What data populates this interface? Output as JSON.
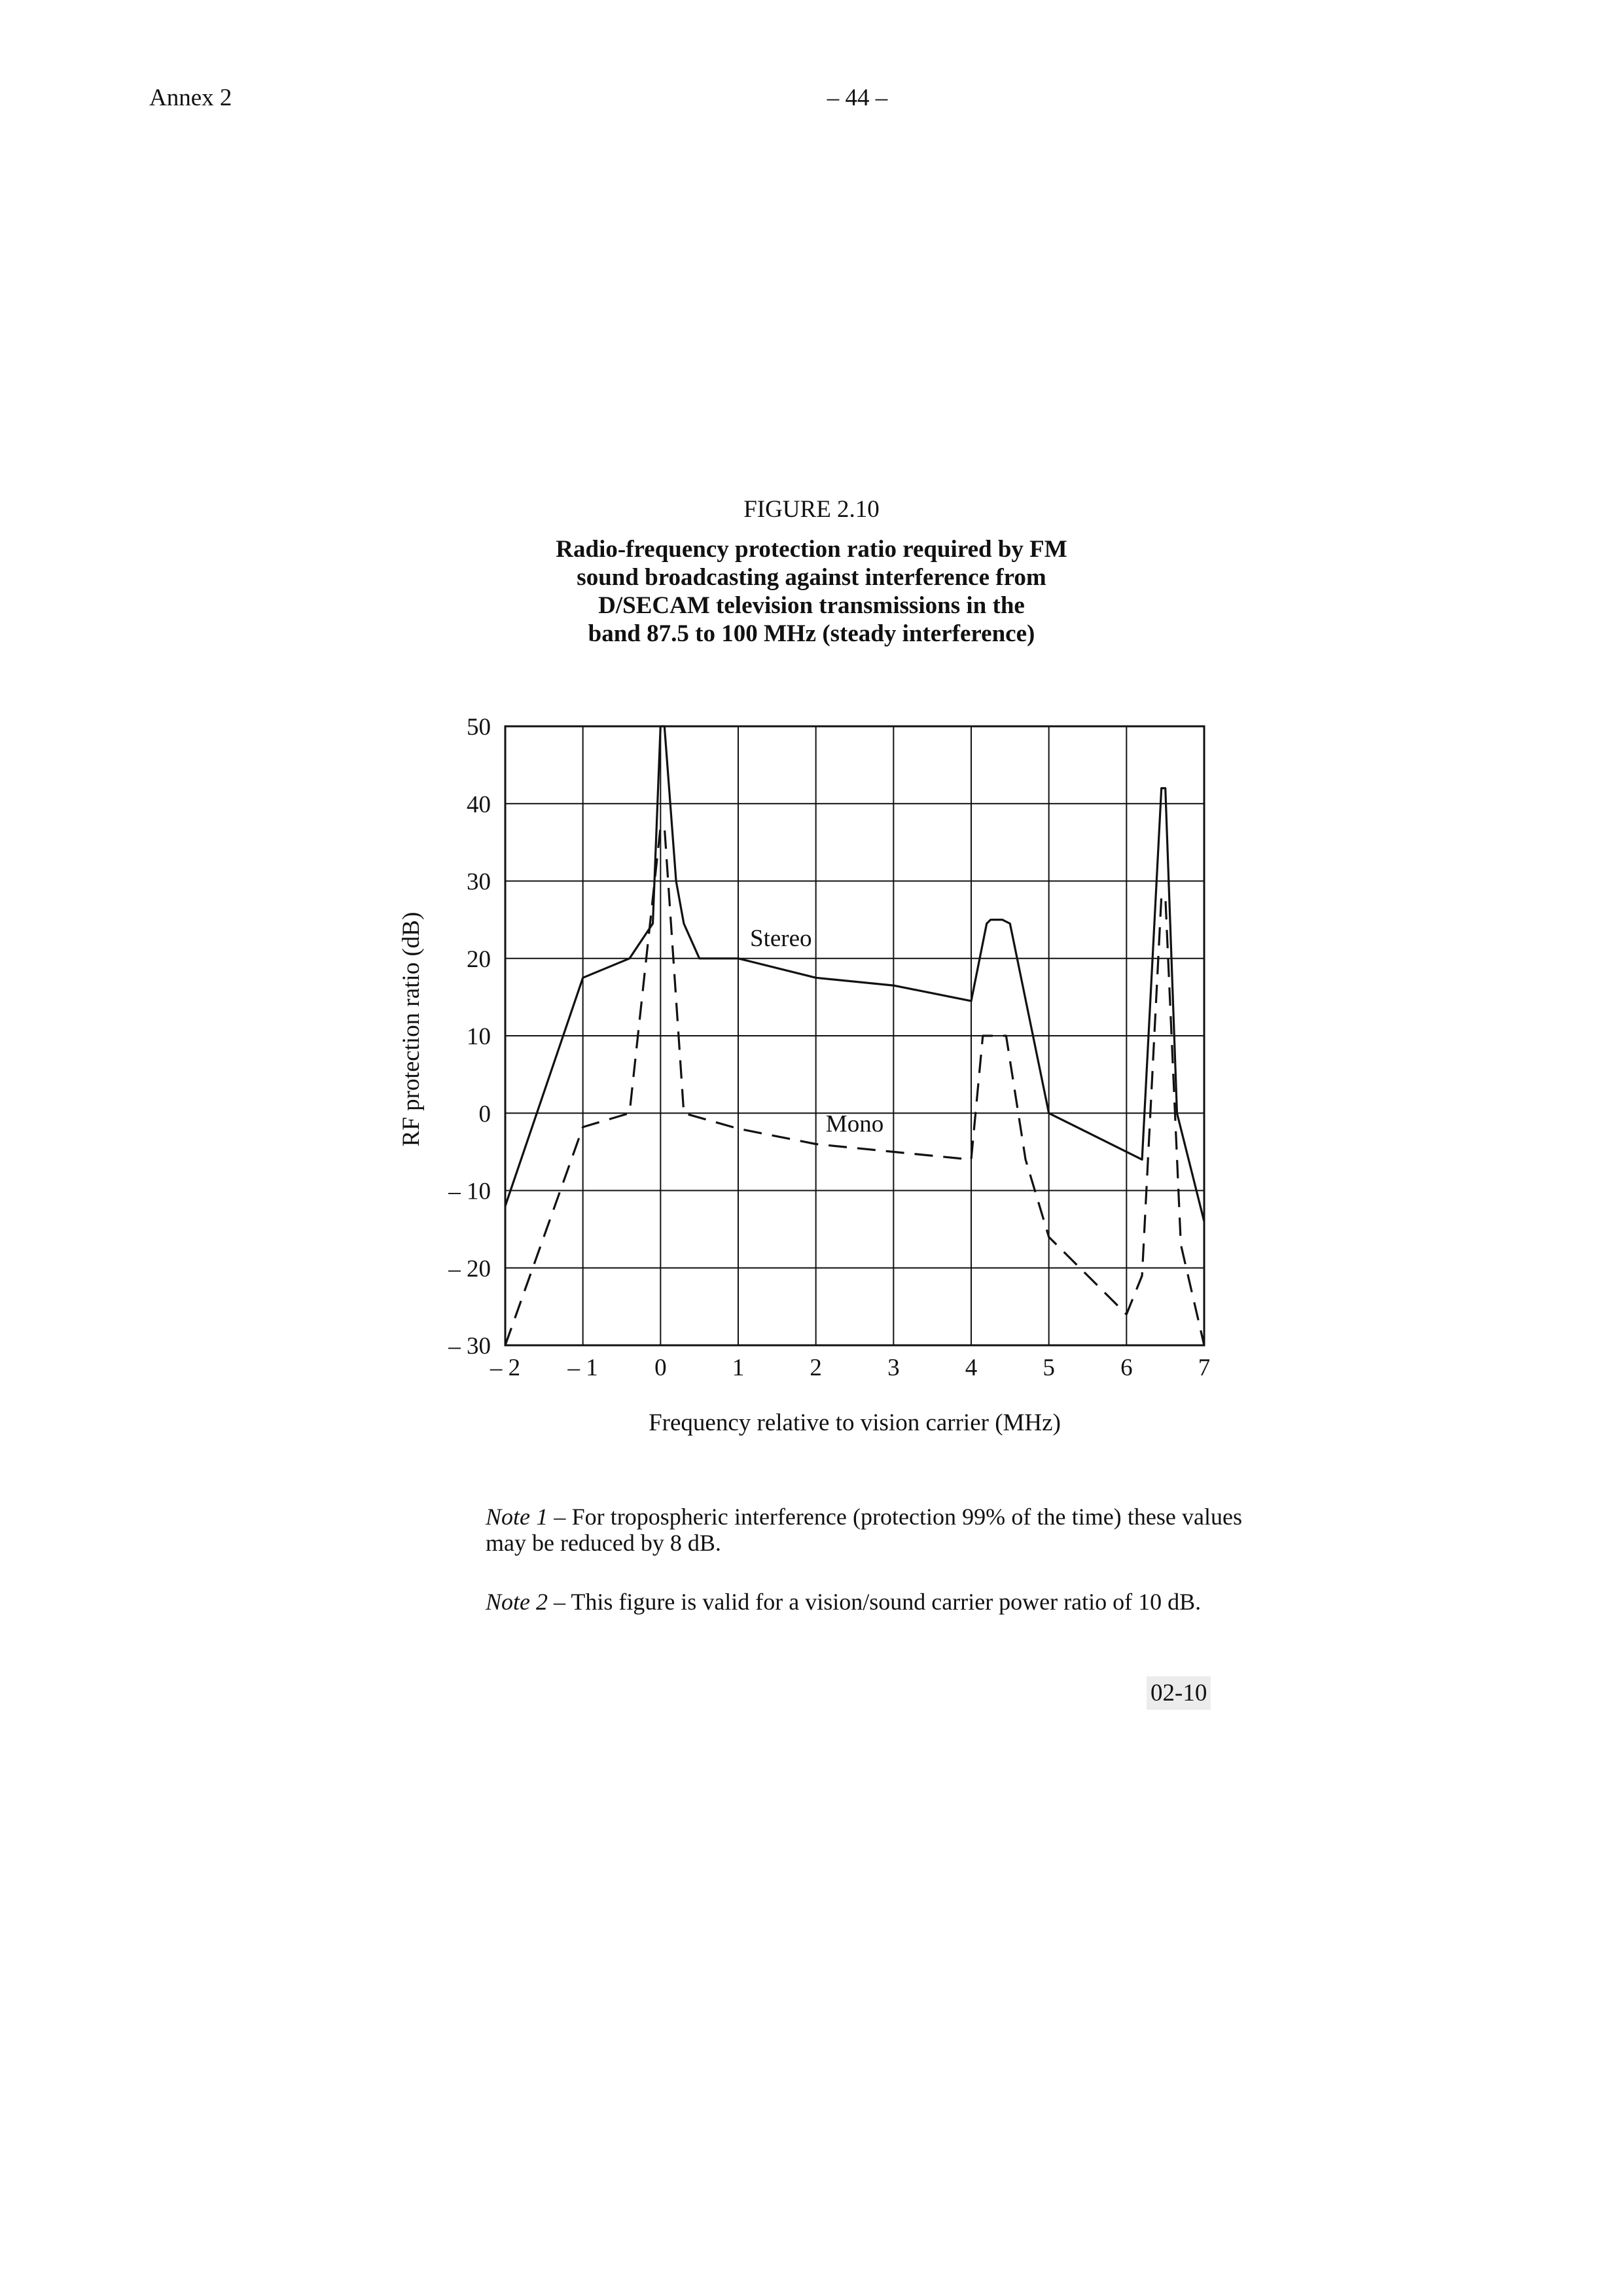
{
  "page": {
    "header_left": "Annex 2",
    "header_center": "– 44 –",
    "figure_number": "FIGURE 2.10",
    "figure_title_lines": [
      "Radio-frequency protection ratio required by FM",
      "sound broadcasting against interference from",
      "D/SECAM television transmissions in the",
      "band 87.5 to 100 MHz (steady interference)"
    ],
    "notes": [
      {
        "label": "Note 1",
        "text": " – For tropospheric interference (protection 99% of the time) these values may be reduced by 8 dB."
      },
      {
        "label": "Note 2",
        "text": " – This figure is valid for a vision/sound carrier power ratio of 10 dB."
      }
    ],
    "figure_code": "02-10"
  },
  "chart_data": {
    "type": "line",
    "title": "Radio-frequency protection ratio required by FM sound broadcasting against interference from D/SECAM television transmissions in the band 87.5 to 100 MHz (steady interference)",
    "xlabel": "Frequency relative to vision carrier (MHz)",
    "ylabel": "RF protection ratio (dB)",
    "xlim": [
      -2,
      7
    ],
    "ylim": [
      -30,
      50
    ],
    "grid": true,
    "x_ticks": [
      -2,
      -1,
      0,
      1,
      2,
      3,
      4,
      5,
      6,
      7
    ],
    "x_tick_labels": [
      "– 2",
      "– 1",
      "0",
      "1",
      "2",
      "3",
      "4",
      "5",
      "6",
      "7"
    ],
    "y_ticks": [
      -30,
      -20,
      -10,
      0,
      10,
      20,
      30,
      40,
      50
    ],
    "y_tick_labels": [
      "– 30",
      "– 20",
      "– 10",
      "0",
      "10",
      "20",
      "30",
      "40",
      "50"
    ],
    "series": [
      {
        "name": "Stereo",
        "style": "solid",
        "points": [
          [
            -2,
            -12
          ],
          [
            -1,
            17.5
          ],
          [
            -0.4,
            20
          ],
          [
            -0.1,
            24.5
          ],
          [
            0,
            50
          ],
          [
            0.05,
            50
          ],
          [
            0.2,
            30
          ],
          [
            0.3,
            24.5
          ],
          [
            0.5,
            20
          ],
          [
            1,
            20
          ],
          [
            2,
            17.5
          ],
          [
            3,
            16.5
          ],
          [
            4,
            14.5
          ],
          [
            4.2,
            24.5
          ],
          [
            4.25,
            25
          ],
          [
            4.4,
            25
          ],
          [
            4.5,
            24.5
          ],
          [
            5,
            0
          ],
          [
            6.2,
            -6
          ],
          [
            6.45,
            42
          ],
          [
            6.5,
            42
          ],
          [
            6.65,
            0
          ],
          [
            7,
            -14
          ]
        ]
      },
      {
        "name": "Mono",
        "style": "dashed",
        "points": [
          [
            -2,
            -30
          ],
          [
            -1,
            -1.8
          ],
          [
            -0.4,
            0
          ],
          [
            0,
            37
          ],
          [
            0.05,
            37
          ],
          [
            0.3,
            0
          ],
          [
            1,
            -2
          ],
          [
            2,
            -4
          ],
          [
            3,
            -5
          ],
          [
            4,
            -6
          ],
          [
            4.15,
            10
          ],
          [
            4.45,
            10
          ],
          [
            4.7,
            -6
          ],
          [
            5,
            -16
          ],
          [
            6,
            -26
          ],
          [
            6.2,
            -21
          ],
          [
            6.45,
            28
          ],
          [
            6.5,
            28
          ],
          [
            6.7,
            -17
          ],
          [
            7,
            -30
          ]
        ]
      }
    ],
    "annotations": [
      {
        "text": "Stereo",
        "x": 1.55,
        "y": 21.6
      },
      {
        "text": "Mono",
        "x": 2.5,
        "y": -2.4
      }
    ]
  }
}
